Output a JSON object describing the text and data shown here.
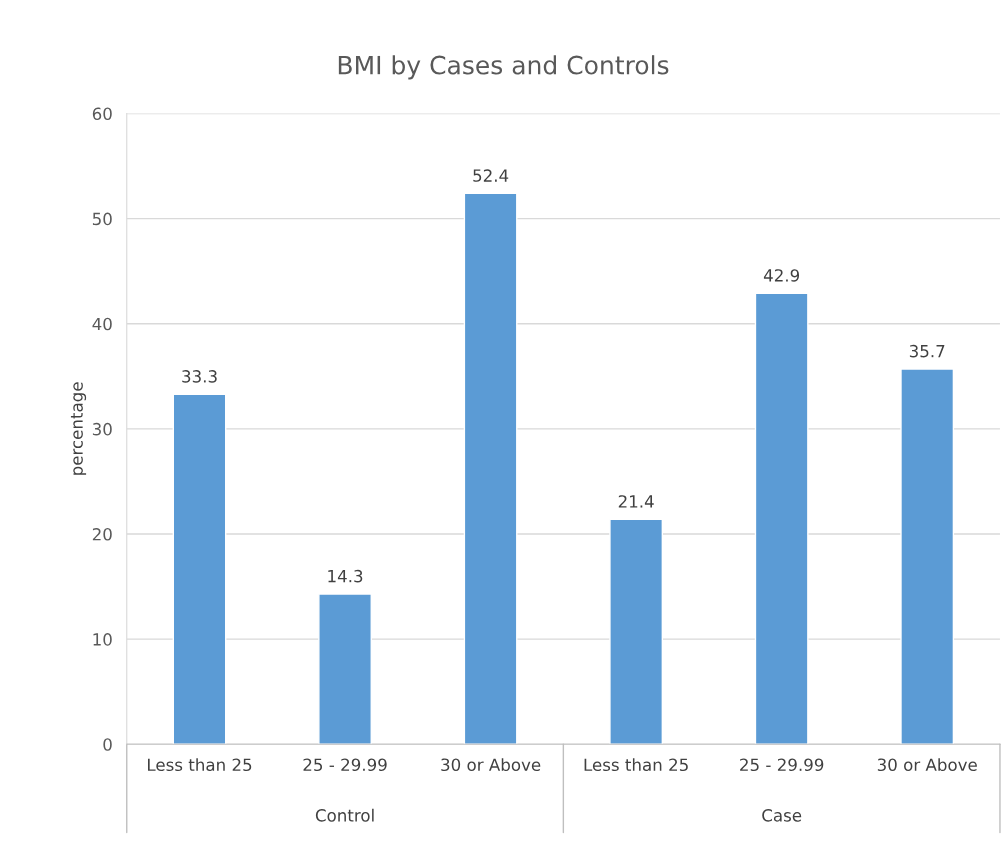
{
  "chart_data": {
    "type": "bar",
    "title": "BMI by Cases and Controls",
    "ylabel": "percentage",
    "categories": [
      "Less than 25",
      "25 - 29.99",
      "30 or Above",
      "Less than 25",
      "25 - 29.99",
      "30 or Above"
    ],
    "values": [
      33.3,
      14.3,
      52.4,
      21.4,
      42.9,
      35.7
    ],
    "color": "#5b9bd5",
    "ylim": [
      0,
      60
    ],
    "yticks": [
      0,
      10,
      20,
      30,
      40,
      50,
      60
    ],
    "grid": "y",
    "data_labels": true,
    "annotations": [
      "Control",
      "Case"
    ]
  }
}
